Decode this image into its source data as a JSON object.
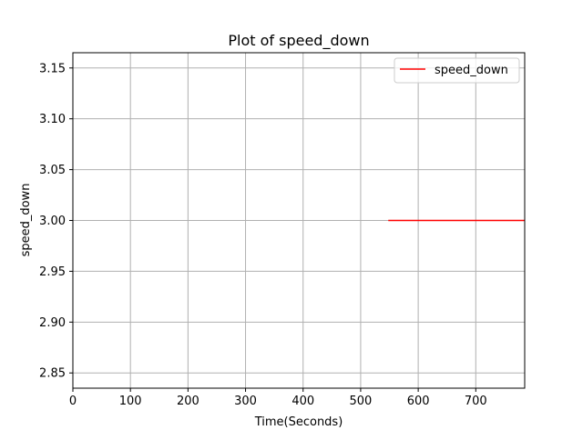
{
  "chart_data": {
    "type": "line",
    "title": "Plot of speed_down",
    "xlabel": "Time(Seconds)",
    "ylabel": "speed_down",
    "xlim": [
      0,
      785
    ],
    "ylim": [
      2.835,
      3.165
    ],
    "xticks": [
      0,
      100,
      200,
      300,
      400,
      500,
      600,
      700
    ],
    "yticks": [
      2.85,
      2.9,
      2.95,
      3.0,
      3.05,
      3.1,
      3.15
    ],
    "xtick_labels": [
      "0",
      "100",
      "200",
      "300",
      "400",
      "500",
      "600",
      "700"
    ],
    "ytick_labels": [
      "2.85",
      "2.90",
      "2.95",
      "3.00",
      "3.05",
      "3.10",
      "3.15"
    ],
    "grid": true,
    "legend_position": "top-right",
    "series": [
      {
        "name": "speed_down",
        "color": "#ff0000",
        "x": [
          548,
          785
        ],
        "y": [
          3.0,
          3.0
        ]
      }
    ]
  }
}
